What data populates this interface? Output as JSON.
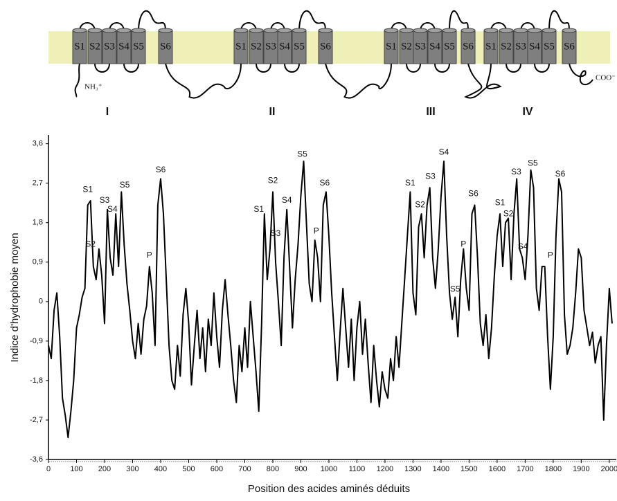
{
  "topology": {
    "domains": [
      {
        "label": "I",
        "segments": [
          "S1",
          "S2",
          "S3",
          "S4",
          "S5",
          "S6"
        ]
      },
      {
        "label": "II",
        "segments": [
          "S1",
          "S2",
          "S3",
          "S4",
          "S5",
          "S6"
        ]
      },
      {
        "label": "III",
        "segments": [
          "S1",
          "S2",
          "S3",
          "S4",
          "S5",
          "S6"
        ]
      },
      {
        "label": "IV",
        "segments": [
          "S1",
          "S2",
          "S3",
          "S4",
          "S5",
          "S6"
        ]
      }
    ],
    "n_terminus": "NH₃⁺",
    "c_terminus": "COO⁻"
  },
  "chart_data": {
    "type": "line",
    "x_label": "Position des acides aminés déduits",
    "y_label": "Indice d'hydrophobie moyen",
    "color": "#000000",
    "xlim": [
      0,
      2025
    ],
    "ylim": [
      -3.6,
      3.8
    ],
    "xticks": [
      0,
      100,
      200,
      300,
      400,
      500,
      600,
      700,
      800,
      900,
      1000,
      1100,
      1200,
      1300,
      1400,
      1500,
      1600,
      1700,
      1800,
      1900,
      2000
    ],
    "yticks": [
      {
        "value": -3.6,
        "label": "-3,6"
      },
      {
        "value": -2.7,
        "label": "-2,7"
      },
      {
        "value": -1.8,
        "label": "-1,8"
      },
      {
        "value": -0.9,
        "label": "-0,9"
      },
      0,
      {
        "value": 0.9,
        "label": "0,9"
      },
      {
        "value": 1.8,
        "label": "1,8"
      },
      {
        "value": 2.7,
        "label": "2,7"
      },
      {
        "value": 3.6,
        "label": "3,6"
      }
    ],
    "x": [
      0,
      10,
      20,
      30,
      40,
      50,
      60,
      70,
      80,
      90,
      100,
      110,
      120,
      130,
      140,
      150,
      160,
      170,
      180,
      190,
      200,
      210,
      220,
      230,
      240,
      250,
      260,
      270,
      280,
      290,
      300,
      310,
      320,
      330,
      340,
      350,
      360,
      370,
      380,
      390,
      400,
      410,
      420,
      430,
      440,
      450,
      460,
      470,
      480,
      490,
      500,
      510,
      520,
      530,
      540,
      550,
      560,
      570,
      580,
      590,
      600,
      610,
      620,
      630,
      640,
      650,
      660,
      670,
      680,
      690,
      700,
      710,
      720,
      730,
      740,
      750,
      760,
      770,
      780,
      790,
      800,
      810,
      820,
      830,
      840,
      850,
      860,
      870,
      880,
      890,
      900,
      910,
      920,
      930,
      940,
      950,
      960,
      970,
      980,
      990,
      1000,
      1010,
      1020,
      1030,
      1040,
      1050,
      1060,
      1070,
      1080,
      1090,
      1100,
      1110,
      1120,
      1130,
      1140,
      1150,
      1160,
      1170,
      1180,
      1190,
      1200,
      1210,
      1220,
      1230,
      1240,
      1250,
      1260,
      1270,
      1280,
      1290,
      1300,
      1310,
      1320,
      1330,
      1340,
      1350,
      1360,
      1370,
      1380,
      1390,
      1400,
      1410,
      1420,
      1430,
      1440,
      1450,
      1460,
      1470,
      1480,
      1490,
      1500,
      1510,
      1520,
      1530,
      1540,
      1550,
      1560,
      1570,
      1580,
      1590,
      1600,
      1610,
      1620,
      1630,
      1640,
      1650,
      1660,
      1670,
      1680,
      1690,
      1700,
      1710,
      1720,
      1730,
      1740,
      1750,
      1760,
      1770,
      1780,
      1790,
      1800,
      1810,
      1820,
      1830,
      1840,
      1850,
      1860,
      1870,
      1880,
      1890,
      1900,
      1910,
      1920,
      1930,
      1940,
      1950,
      1960,
      1970,
      1980,
      1990,
      2000,
      2010
    ],
    "values": [
      -1.0,
      -1.3,
      -0.2,
      0.2,
      -0.8,
      -2.2,
      -2.6,
      -3.1,
      -2.5,
      -1.8,
      -0.6,
      -0.3,
      0.1,
      0.3,
      2.2,
      2.3,
      0.8,
      0.5,
      1.2,
      0.6,
      -0.5,
      2.1,
      1.0,
      0.6,
      2.0,
      0.8,
      2.5,
      1.3,
      0.4,
      -0.2,
      -0.9,
      -1.3,
      -0.5,
      -1.2,
      -0.4,
      -0.1,
      0.8,
      0.2,
      -1.0,
      2.2,
      2.8,
      2.0,
      0.5,
      -1.0,
      -1.8,
      -2.0,
      -1.0,
      -1.7,
      -0.3,
      0.3,
      -0.5,
      -1.9,
      -1.0,
      -0.2,
      -1.3,
      -0.6,
      -1.6,
      -0.4,
      -1.0,
      0.2,
      -0.8,
      -1.5,
      -0.2,
      0.5,
      -0.3,
      -1.0,
      -1.8,
      -2.3,
      -1.0,
      -1.6,
      -0.6,
      -1.5,
      0.0,
      -0.8,
      -1.6,
      -2.5,
      -0.5,
      2.0,
      0.5,
      1.2,
      2.5,
      0.9,
      0.0,
      -1.0,
      1.0,
      2.1,
      0.8,
      -0.6,
      0.5,
      1.3,
      2.4,
      3.2,
      1.8,
      0.4,
      0.0,
      1.4,
      1.0,
      0.0,
      2.2,
      2.5,
      1.5,
      0.2,
      -0.8,
      -1.8,
      -0.7,
      0.3,
      -0.6,
      -1.5,
      -0.4,
      -1.8,
      -0.6,
      0.0,
      -1.2,
      -0.4,
      -1.4,
      -2.3,
      -1.0,
      -1.8,
      -2.4,
      -1.6,
      -2.0,
      -2.2,
      -1.3,
      -1.8,
      -0.8,
      -1.5,
      -0.5,
      0.5,
      1.5,
      2.5,
      0.2,
      -0.3,
      1.7,
      2.0,
      1.0,
      2.2,
      2.6,
      1.0,
      0.3,
      1.2,
      2.4,
      3.2,
      1.5,
      0.2,
      -0.4,
      0.1,
      -0.8,
      0.5,
      1.2,
      0.3,
      -0.2,
      2.0,
      2.2,
      1.0,
      -0.5,
      -1.0,
      -0.3,
      -1.3,
      -0.6,
      0.6,
      1.5,
      2.0,
      0.8,
      1.8,
      1.9,
      0.5,
      2.0,
      2.8,
      1.2,
      1.0,
      0.5,
      1.5,
      3.0,
      2.6,
      0.3,
      -0.2,
      0.8,
      0.8,
      -0.8,
      -2.0,
      -0.8,
      1.5,
      2.8,
      2.5,
      -0.3,
      -1.2,
      -1.0,
      -0.6,
      0.2,
      1.2,
      1.0,
      -0.2,
      -0.6,
      -1.0,
      -0.7,
      -1.4,
      -1.0,
      -0.8,
      -2.7,
      -1.0,
      0.3,
      -0.5
    ],
    "annotations": [
      {
        "text": "S1",
        "x": 140,
        "y": 2.55
      },
      {
        "text": "S2",
        "x": 150,
        "y": 1.3
      },
      {
        "text": "S3",
        "x": 200,
        "y": 2.3
      },
      {
        "text": "S4",
        "x": 228,
        "y": 2.1
      },
      {
        "text": "S5",
        "x": 272,
        "y": 2.65
      },
      {
        "text": "P",
        "x": 360,
        "y": 1.05
      },
      {
        "text": "S6",
        "x": 400,
        "y": 3.0
      },
      {
        "text": "S1",
        "x": 750,
        "y": 2.1
      },
      {
        "text": "S2",
        "x": 800,
        "y": 2.75
      },
      {
        "text": "S3",
        "x": 810,
        "y": 1.55
      },
      {
        "text": "S4",
        "x": 850,
        "y": 2.3
      },
      {
        "text": "S5",
        "x": 905,
        "y": 3.35
      },
      {
        "text": "P",
        "x": 955,
        "y": 1.6
      },
      {
        "text": "S6",
        "x": 985,
        "y": 2.7
      },
      {
        "text": "S1",
        "x": 1290,
        "y": 2.7
      },
      {
        "text": "S2",
        "x": 1325,
        "y": 2.2
      },
      {
        "text": "S3",
        "x": 1362,
        "y": 2.85
      },
      {
        "text": "S4",
        "x": 1410,
        "y": 3.4
      },
      {
        "text": "S5",
        "x": 1450,
        "y": 0.28
      },
      {
        "text": "P",
        "x": 1480,
        "y": 1.3
      },
      {
        "text": "S6",
        "x": 1515,
        "y": 2.45
      },
      {
        "text": "S1",
        "x": 1610,
        "y": 2.25
      },
      {
        "text": "S2",
        "x": 1640,
        "y": 2.0
      },
      {
        "text": "S3",
        "x": 1668,
        "y": 2.95
      },
      {
        "text": "S4",
        "x": 1692,
        "y": 1.25
      },
      {
        "text": "S5",
        "x": 1727,
        "y": 3.15
      },
      {
        "text": "P",
        "x": 1790,
        "y": 1.05
      },
      {
        "text": "S6",
        "x": 1825,
        "y": 2.9
      }
    ]
  }
}
